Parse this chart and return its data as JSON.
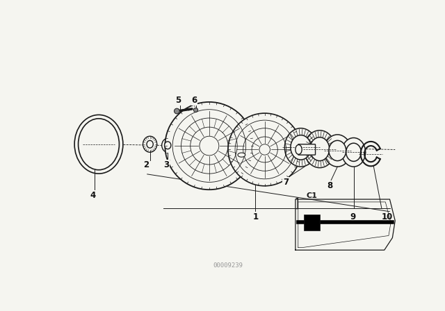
{
  "background_color": "#f5f5f0",
  "fig_width": 6.4,
  "fig_height": 4.48,
  "dpi": 100,
  "watermark": "00009239",
  "line_color": "#1a1a1a",
  "bg": "#f5f5f0"
}
